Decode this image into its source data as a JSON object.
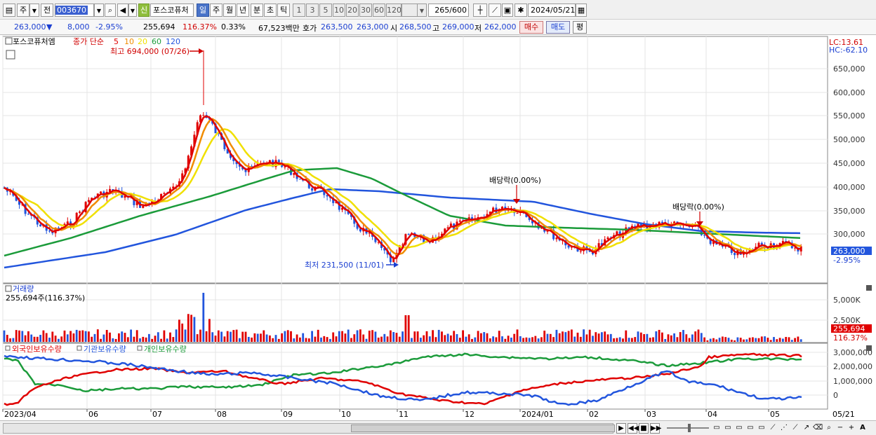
{
  "toolbar": {
    "period_main": "주",
    "prev_label": "전",
    "stock_code": "003670",
    "stock_name": "포스코퓨처",
    "badge_new": "신",
    "period_tabs": [
      "일",
      "주",
      "월",
      "년",
      "분",
      "초",
      "틱"
    ],
    "active_period": "일",
    "interval_tabs": [
      "1",
      "3",
      "5",
      "10",
      "20",
      "30",
      "60",
      "120"
    ],
    "count_current": "265",
    "count_total": "/600",
    "date": "2024/05/21"
  },
  "infobar": {
    "price": "263,000",
    "change_arrow": "▼",
    "change": "8,000",
    "change_pct": "-2.95%",
    "volume": "255,694",
    "volume_pct": "116.37%",
    "turnover": "0.33%",
    "amount": "67,523백만",
    "ask_label": "호가",
    "ask": "263,500",
    "bid": "263,000",
    "open_label": "시",
    "open": "268,500",
    "high_label": "고",
    "high": "269,000",
    "low_label": "저",
    "low": "262,000",
    "buy_label": "매수",
    "sell_label": "매도",
    "eval_label": "평"
  },
  "price_panel": {
    "name_label": "포스코퓨처엠",
    "ma_label": "종가 단순",
    "ma_periods": [
      "5",
      "10",
      "20",
      "60",
      "120"
    ],
    "ma_colors": [
      "#e00000",
      "#f08c00",
      "#f0e000",
      "#1b9b3a",
      "#2255dd"
    ],
    "lc_label": "LC:13.61",
    "hc_label": "HC:-62.10",
    "high_annotation": "최고 694,000 (07/26)",
    "low_annotation": "최저 231,500 (11/01)",
    "div_annotation_1": "배당락(0.00%)",
    "div_annotation_2": "배당락(0.00%)",
    "current_price_tag": "263,000",
    "current_pct_tag": "-2.95%",
    "y_ticks": [
      "650,000",
      "600,000",
      "550,000",
      "500,000",
      "450,000",
      "400,000",
      "350,000",
      "300,000"
    ]
  },
  "volume_panel": {
    "title": "거래량",
    "subtitle": "255,694주(116.37%)",
    "y_ticks": [
      "5,000K",
      "2,500K"
    ],
    "current_tag": "255,694",
    "current_pct": "116.37%"
  },
  "holding_panel": {
    "legend": [
      "외국인보유수량",
      "기관보유수량",
      "개인보유수량"
    ],
    "legend_colors": [
      "#e00000",
      "#2255dd",
      "#1b9b3a"
    ],
    "y_ticks": [
      "3,000,000",
      "2,000,000",
      "1,000,000",
      "0"
    ]
  },
  "x_axis": {
    "labels": [
      "2023/04",
      "06",
      "07",
      "08",
      "09",
      "10",
      "11",
      "12",
      "2024/01",
      "02",
      "03",
      "04",
      "05"
    ],
    "right_label": "05/21"
  }
}
